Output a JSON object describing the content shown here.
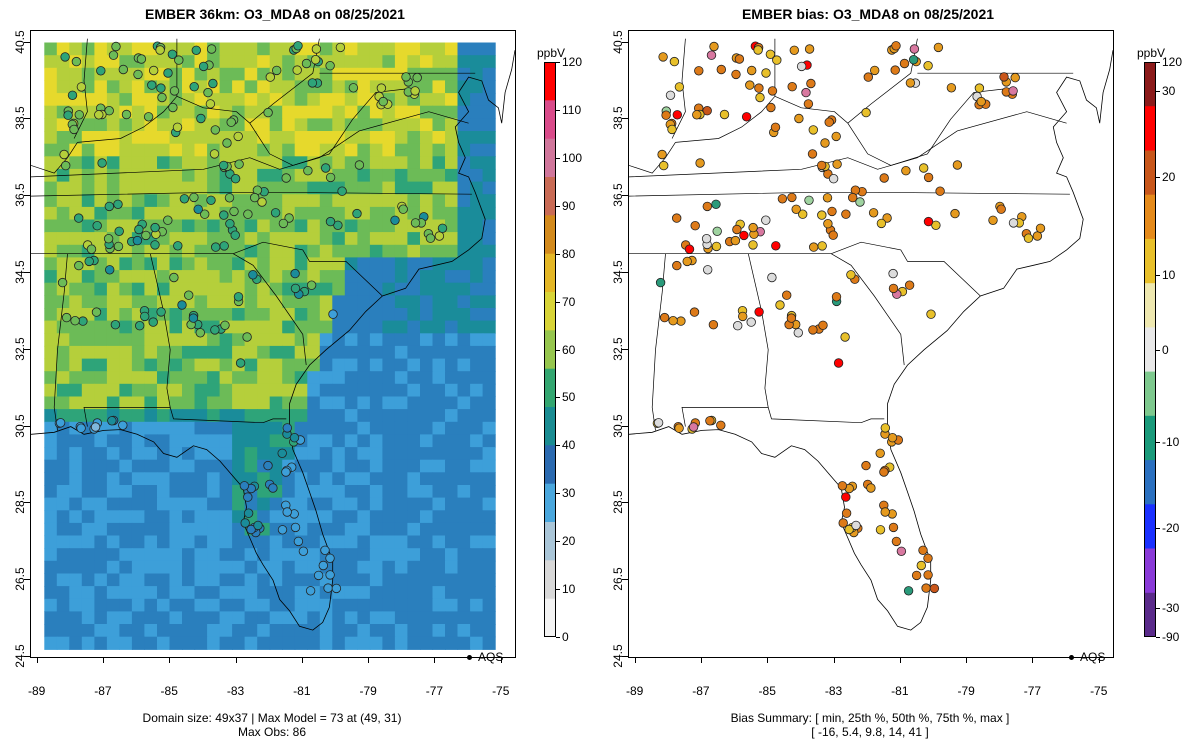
{
  "left_panel": {
    "title": "EMBER 36km: O3_MDA8 on 08/25/2021",
    "footer_line1": "Domain size: 49x37 | Max Model = 73 at (49, 31)",
    "footer_line2": "Max Obs: 86",
    "legend_label": "AQS",
    "colorbar": {
      "unit": "ppbV",
      "ticks": [
        "120",
        "110",
        "100",
        "90",
        "80",
        "70",
        "60",
        "50",
        "40",
        "30",
        "20",
        "10",
        "0"
      ],
      "tick_values": [
        120,
        110,
        100,
        90,
        80,
        70,
        60,
        50,
        40,
        30,
        20,
        10,
        0
      ],
      "colors": [
        "#ff0000",
        "#d94b8a",
        "#d0769b",
        "#c96b55",
        "#d38a1c",
        "#e4b726",
        "#d8d437",
        "#96c64e",
        "#33a670",
        "#1a8c92",
        "#2a6ab0",
        "#4aa7dd",
        "#aac6d8",
        "#d8d8d8",
        "#f3f3f3"
      ]
    }
  },
  "right_panel": {
    "title": "EMBER bias: O3_MDA8 on 08/25/2021",
    "footer_line1": "Bias Summary: [ min, 25th %, 50th %, 75th %, max ]",
    "footer_line2": "[ -16,   5.4,   9.8,   14,   41 ]",
    "legend_label": "AQS",
    "colorbar": {
      "unit": "ppbV",
      "ticks": [
        "120",
        "30",
        "20",
        "10",
        "0",
        "-10",
        "-20",
        "-30",
        "-90"
      ],
      "tick_values": [
        120,
        30,
        20,
        10,
        0,
        -10,
        -20,
        -30,
        -90
      ],
      "colors": [
        "#8b1a1a",
        "#ff0000",
        "#c8561a",
        "#e58a1a",
        "#e8c02a",
        "#eee8b0",
        "#e8e8e8",
        "#7ec98e",
        "#1a9a7a",
        "#2a70c0",
        "#1a30ff",
        "#8a3ad8",
        "#5a2a8a"
      ]
    }
  },
  "axes": {
    "x_ticks": [
      "-89",
      "-87",
      "-85",
      "-83",
      "-81",
      "-79",
      "-77",
      "-75"
    ],
    "y_ticks": [
      "40.5",
      "38.5",
      "36.5",
      "34.5",
      "32.5",
      "30.5",
      "28.5",
      "26.5",
      "24.5"
    ]
  },
  "map_data": {
    "lon_range": [
      -89.2,
      -74.6
    ],
    "lat_range": [
      24.5,
      40.8
    ],
    "grid": {
      "cols": 36,
      "rows": 48,
      "lon_min": -88.8,
      "lon_max": -75.2,
      "lat_min": 24.7,
      "lat_max": 40.5
    }
  }
}
